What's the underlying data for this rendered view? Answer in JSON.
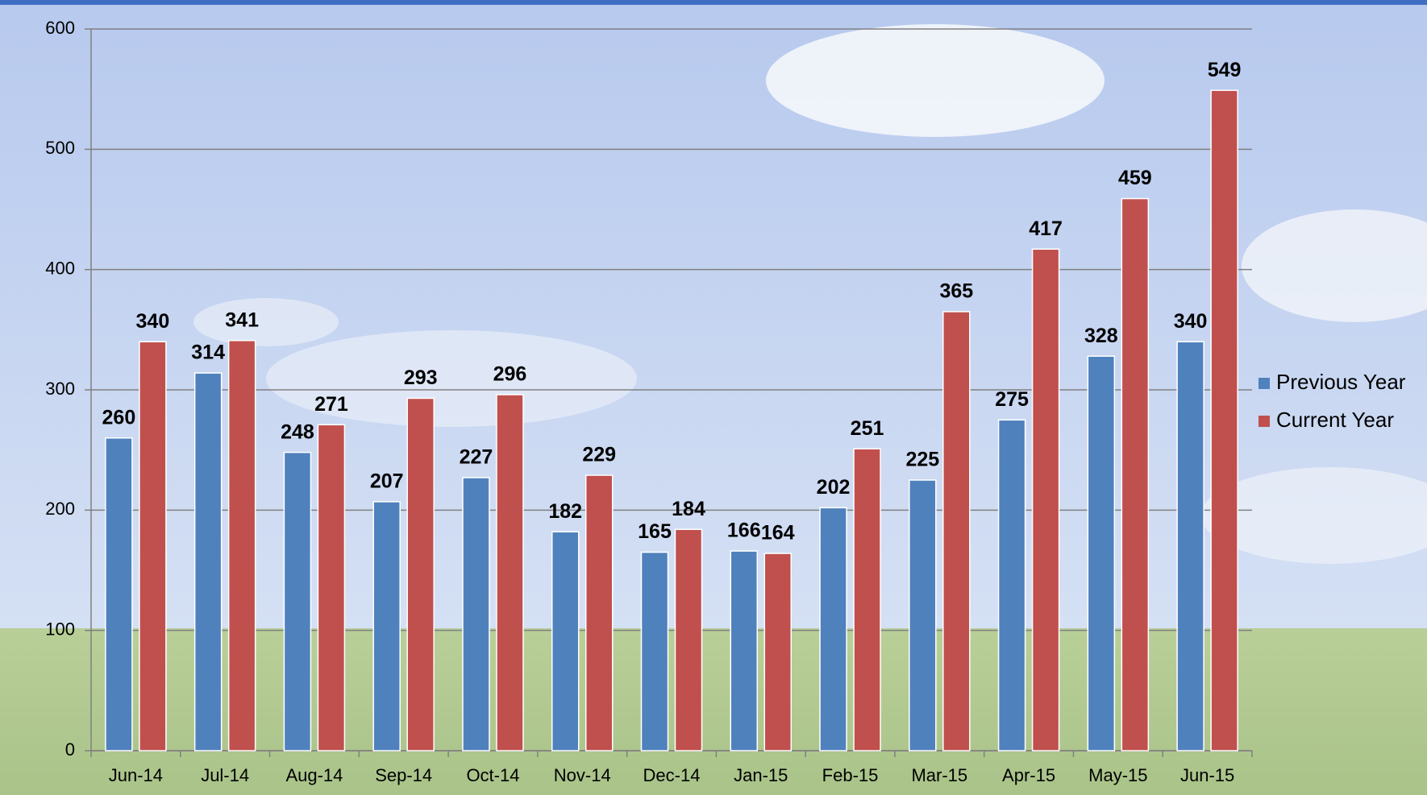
{
  "chart_data": {
    "type": "bar",
    "categories": [
      "Jun-14",
      "Jul-14",
      "Aug-14",
      "Sep-14",
      "Oct-14",
      "Nov-14",
      "Dec-14",
      "Jan-15",
      "Feb-15",
      "Mar-15",
      "Apr-15",
      "May-15",
      "Jun-15"
    ],
    "series": [
      {
        "name": "Previous Year",
        "color": "#4f81bd",
        "values": [
          260,
          314,
          248,
          207,
          227,
          182,
          165,
          166,
          202,
          225,
          275,
          328,
          340
        ]
      },
      {
        "name": "Current Year",
        "color": "#c0504d",
        "values": [
          340,
          341,
          271,
          293,
          296,
          229,
          184,
          164,
          251,
          365,
          417,
          459,
          549
        ]
      }
    ],
    "ylim": [
      0,
      600
    ],
    "yticks": [
      0,
      100,
      200,
      300,
      400,
      500,
      600
    ],
    "grid": true,
    "legend": "right"
  }
}
